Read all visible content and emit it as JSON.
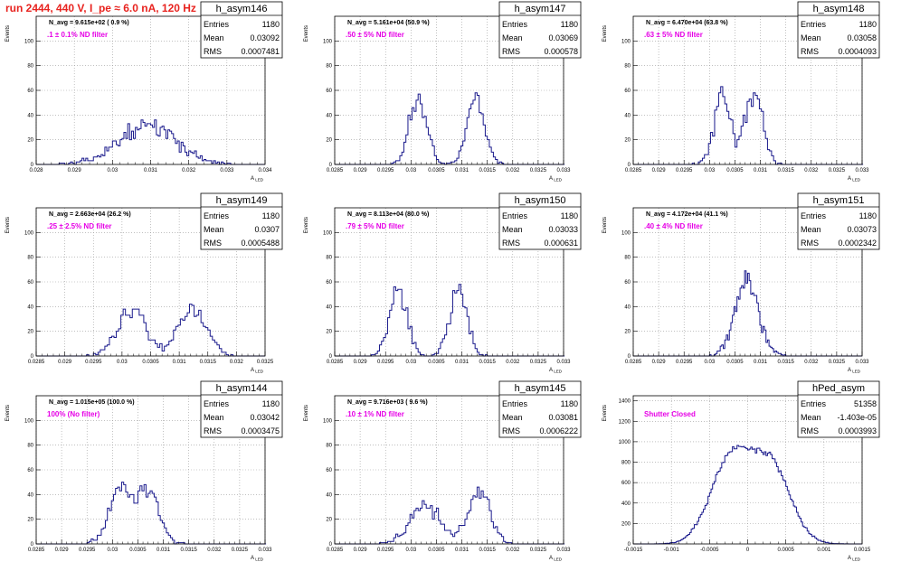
{
  "page_title": "run 2444,   440 V, I_pe ≈ 6.0 nA, 120 Hz",
  "colors": {
    "title": "#e8231f",
    "histogram": "#1a1a8c",
    "annotation": "#e600e6",
    "frame": "#000000",
    "grid": "#9a9a9a"
  },
  "chart_data": [
    {
      "type": "histogram",
      "name": "h_asym146",
      "ylabel": "Events",
      "xlabel": "A_LED",
      "xlim": [
        0.028,
        0.034
      ],
      "ylim": [
        0,
        120
      ],
      "xticks": [
        0.028,
        0.029,
        0.03,
        0.031,
        0.032,
        0.033,
        0.034
      ],
      "xtick_labels": [
        "0.028",
        "0.029",
        "0.03",
        "0.031",
        "0.032",
        "0.033",
        "0.034"
      ],
      "yticks": [
        0,
        20,
        40,
        60,
        80,
        100
      ],
      "ytick_labels": [
        "0",
        "20",
        "40",
        "60",
        "80",
        "100"
      ],
      "stats": {
        "Entries": "1180",
        "Mean": "0.03092",
        "RMS": "0.0007481"
      },
      "navg": "N_avg = 9.615e+02 ( 0.9 %)",
      "filter": ".1 ± 0.1% ND filter",
      "peaks": [
        [
          0.03092,
          0.00075,
          1180
        ]
      ],
      "bin_width": 5e-05
    },
    {
      "type": "histogram",
      "name": "h_asym147",
      "ylabel": "Events",
      "xlabel": "A_LED",
      "xlim": [
        0.0285,
        0.033
      ],
      "ylim": [
        0,
        120
      ],
      "xticks": [
        0.0285,
        0.029,
        0.0295,
        0.03,
        0.0305,
        0.031,
        0.0315,
        0.032,
        0.0325,
        0.033
      ],
      "xtick_labels": [
        "0.0285",
        "0.029",
        "0.0295",
        "0.03",
        "0.0305",
        "0.031",
        "0.0315",
        "0.032",
        "0.0325",
        "0.033"
      ],
      "yticks": [
        0,
        20,
        40,
        60,
        80,
        100
      ],
      "ytick_labels": [
        "0",
        "20",
        "40",
        "60",
        "80",
        "100"
      ],
      "stats": {
        "Entries": "1180",
        "Mean": "0.03069",
        "RMS": "0.000578"
      },
      "navg": "N_avg = 5.161e+04 (50.9 %)",
      "filter": ".50 ± 5% ND filter",
      "peaks": [
        [
          0.03013,
          0.00017,
          590
        ],
        [
          0.03127,
          0.00017,
          590
        ]
      ],
      "bin_width": 4e-05
    },
    {
      "type": "histogram",
      "name": "h_asym148",
      "ylabel": "Events",
      "xlabel": "A_LED",
      "xlim": [
        0.0285,
        0.033
      ],
      "ylim": [
        0,
        120
      ],
      "xticks": [
        0.0285,
        0.029,
        0.0295,
        0.03,
        0.0305,
        0.031,
        0.0315,
        0.032,
        0.0325,
        0.033
      ],
      "xtick_labels": [
        "0.0285",
        "0.029",
        "0.0295",
        "0.03",
        "0.0305",
        "0.031",
        "0.0315",
        "0.032",
        "0.0325",
        "0.033"
      ],
      "yticks": [
        0,
        20,
        40,
        60,
        80,
        100
      ],
      "ytick_labels": [
        "0",
        "20",
        "40",
        "60",
        "80",
        "100"
      ],
      "stats": {
        "Entries": "1180",
        "Mean": "0.03058",
        "RMS": "0.0004093"
      },
      "navg": "N_avg = 6.470e+04 (63.8 %)",
      "filter": ".63 ± 5% ND filter",
      "peaks": [
        [
          0.03025,
          0.00017,
          560
        ],
        [
          0.03088,
          0.00017,
          620
        ]
      ],
      "bin_width": 4e-05
    },
    {
      "type": "histogram",
      "name": "h_asym149",
      "ylabel": "Events",
      "xlabel": "A_LED",
      "xlim": [
        0.0285,
        0.0325
      ],
      "ylim": [
        0,
        120
      ],
      "xticks": [
        0.0285,
        0.029,
        0.0295,
        0.03,
        0.0305,
        0.031,
        0.0315,
        0.032,
        0.0325
      ],
      "xtick_labels": [
        "0.0285",
        "0.029",
        "0.0295",
        "0.03",
        "0.0305",
        "0.031",
        "0.0315",
        "0.032",
        "0.0325"
      ],
      "yticks": [
        0,
        20,
        40,
        60,
        80,
        100
      ],
      "ytick_labels": [
        "0",
        "20",
        "40",
        "60",
        "80",
        "100"
      ],
      "stats": {
        "Entries": "1180",
        "Mean": "0.0307",
        "RMS": "0.0005488"
      },
      "navg": "N_avg = 2.663e+04 (26.2 %)",
      "filter": ".25 ± 2.5% ND filter",
      "peaks": [
        [
          0.03017,
          0.00025,
          590
        ],
        [
          0.03122,
          0.00025,
          590
        ]
      ],
      "bin_width": 4e-05
    },
    {
      "type": "histogram",
      "name": "h_asym150",
      "ylabel": "Events",
      "xlabel": "A_LED",
      "xlim": [
        0.0285,
        0.033
      ],
      "ylim": [
        0,
        120
      ],
      "xticks": [
        0.0285,
        0.029,
        0.0295,
        0.03,
        0.0305,
        0.031,
        0.0315,
        0.032,
        0.0325,
        0.033
      ],
      "xtick_labels": [
        "0.0285",
        "0.029",
        "0.0295",
        "0.03",
        "0.0305",
        "0.031",
        "0.0315",
        "0.032",
        "0.0325",
        "0.033"
      ],
      "yticks": [
        0,
        20,
        40,
        60,
        80,
        100
      ],
      "ytick_labels": [
        "0",
        "20",
        "40",
        "60",
        "80",
        "100"
      ],
      "stats": {
        "Entries": "1180",
        "Mean": "0.03033",
        "RMS": "0.000631"
      },
      "navg": "N_avg = 8.113e+04 (80.0 %)",
      "filter": ".79 ± 5% ND filter",
      "peaks": [
        [
          0.02975,
          0.00017,
          590
        ],
        [
          0.03093,
          0.00017,
          590
        ]
      ],
      "bin_width": 4e-05
    },
    {
      "type": "histogram",
      "name": "h_asym151",
      "ylabel": "Events",
      "xlabel": "A_LED",
      "xlim": [
        0.0285,
        0.033
      ],
      "ylim": [
        0,
        120
      ],
      "xticks": [
        0.0285,
        0.029,
        0.0295,
        0.03,
        0.0305,
        0.031,
        0.0315,
        0.032,
        0.0325,
        0.033
      ],
      "xtick_labels": [
        "0.0285",
        "0.029",
        "0.0295",
        "0.03",
        "0.0305",
        "0.031",
        "0.0315",
        "0.032",
        "0.0325",
        "0.033"
      ],
      "yticks": [
        0,
        20,
        40,
        60,
        80,
        100
      ],
      "ytick_labels": [
        "0",
        "20",
        "40",
        "60",
        "80",
        "100"
      ],
      "stats": {
        "Entries": "1180",
        "Mean": "0.03073",
        "RMS": "0.0002342"
      },
      "navg": "N_avg = 4.172e+04 (41.1 %)",
      "filter": ".40 ± 4% ND filter",
      "peaks": [
        [
          0.03073,
          0.00023,
          1180
        ]
      ],
      "bin_width": 3e-05
    },
    {
      "type": "histogram",
      "name": "h_asym144",
      "ylabel": "Events",
      "xlabel": "A_LED",
      "xlim": [
        0.0285,
        0.033
      ],
      "ylim": [
        0,
        120
      ],
      "xticks": [
        0.0285,
        0.029,
        0.0295,
        0.03,
        0.0305,
        0.031,
        0.0315,
        0.032,
        0.0325,
        0.033
      ],
      "xtick_labels": [
        "0.0285",
        "0.029",
        "0.0295",
        "0.03",
        "0.0305",
        "0.031",
        "0.0315",
        "0.032",
        "0.0325",
        "0.033"
      ],
      "yticks": [
        0,
        20,
        40,
        60,
        80,
        100
      ],
      "ytick_labels": [
        "0",
        "20",
        "40",
        "60",
        "80",
        "100"
      ],
      "stats": {
        "Entries": "1180",
        "Mean": "0.03042",
        "RMS": "0.0003475"
      },
      "navg": "N_avg = 1.015e+05 (100.0 %)",
      "filter": "100% (No filter)",
      "peaks": [
        [
          0.03015,
          0.00022,
          590
        ],
        [
          0.0307,
          0.00022,
          590
        ]
      ],
      "bin_width": 4e-05
    },
    {
      "type": "histogram",
      "name": "h_asym145",
      "ylabel": "Events",
      "xlabel": "A_LED",
      "xlim": [
        0.0285,
        0.033
      ],
      "ylim": [
        0,
        120
      ],
      "xticks": [
        0.0285,
        0.029,
        0.0295,
        0.03,
        0.0305,
        0.031,
        0.0315,
        0.032,
        0.0325,
        0.033
      ],
      "xtick_labels": [
        "0.0285",
        "0.029",
        "0.0295",
        "0.03",
        "0.0305",
        "0.031",
        "0.0315",
        "0.032",
        "0.0325",
        "0.033"
      ],
      "yticks": [
        0,
        20,
        40,
        60,
        80,
        100
      ],
      "ytick_labels": [
        "0",
        "20",
        "40",
        "60",
        "80",
        "100"
      ],
      "stats": {
        "Entries": "1180",
        "Mean": "0.03081",
        "RMS": "0.0006222"
      },
      "navg": "N_avg = 9.716e+03 ( 9.6 %)",
      "filter": ".10 ± 1% ND filter",
      "peaks": [
        [
          0.03028,
          0.0003,
          590
        ],
        [
          0.03134,
          0.00022,
          590
        ]
      ],
      "bin_width": 4e-05
    },
    {
      "type": "histogram",
      "name": "hPed_asym",
      "ylabel": "Events",
      "xlabel": "A_LED",
      "xlim": [
        -0.0015,
        0.0015
      ],
      "ylim": [
        0,
        1450
      ],
      "xticks": [
        -0.0015,
        -0.001,
        -0.0005,
        0,
        0.0005,
        0.001,
        0.0015
      ],
      "xtick_labels": [
        "-0.0015",
        "-0.001",
        "-0.0005",
        "0",
        "0.0005",
        "0.001",
        "0.0015"
      ],
      "yticks": [
        0,
        200,
        400,
        600,
        800,
        1000,
        1200,
        1400
      ],
      "ytick_labels": [
        "0",
        "200",
        "400",
        "600",
        "800",
        "1000",
        "1200",
        "1400"
      ],
      "stats": {
        "Entries": "51358",
        "Mean": "-1.403e-05",
        "RMS": "0.0003993"
      },
      "navg": "",
      "filter": "Shutter Closed",
      "peaks": [
        [
          -0.00023,
          0.00026,
          26500
        ],
        [
          0.0003,
          0.00026,
          24858
        ]
      ],
      "bin_width": 2e-05
    }
  ]
}
